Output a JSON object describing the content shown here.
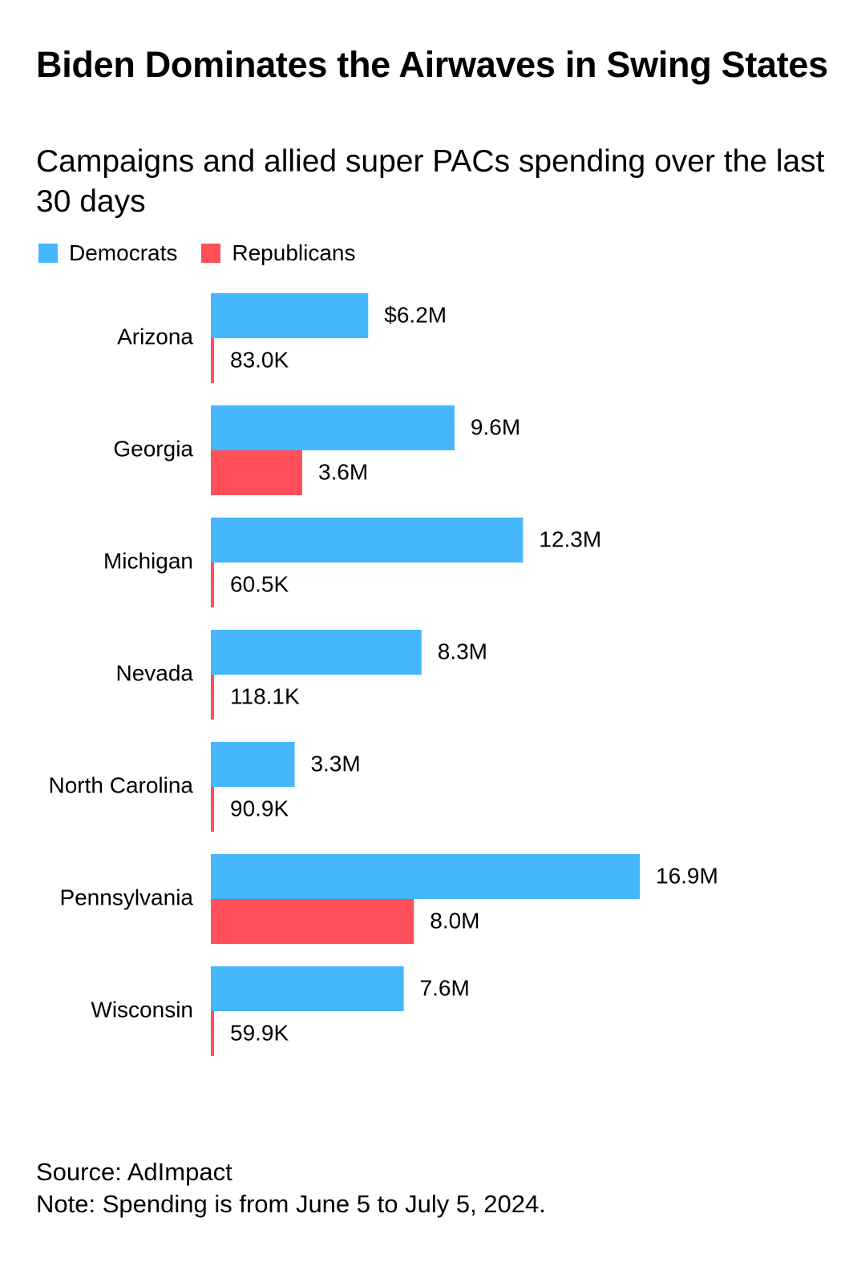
{
  "title": "Biden Dominates the Airwaves in Swing States",
  "subtitle": "Campaigns and allied super PACs spending over the last 30 days",
  "legend": [
    {
      "label": "Democrats",
      "color": "#45B6F9"
    },
    {
      "label": "Republicans",
      "color": "#FF4F5B"
    }
  ],
  "footer": {
    "source": "Source: AdImpact",
    "note": "Note: Spending is from June 5 to July 5, 2024."
  },
  "chart_data": {
    "type": "bar",
    "orientation": "horizontal",
    "title": "Biden Dominates the Airwaves in Swing States",
    "subtitle": "Campaigns and allied super PACs spending over the last 30 days",
    "xlabel": "",
    "ylabel": "",
    "unit": "USD millions",
    "xlim": [
      0,
      16.9
    ],
    "grid": false,
    "legend_position": "top-left",
    "categories": [
      "Arizona",
      "Georgia",
      "Michigan",
      "Nevada",
      "North Carolina",
      "Pennsylvania",
      "Wisconsin"
    ],
    "series": [
      {
        "name": "Democrats",
        "color": "#45B6F9",
        "values": [
          6.2,
          9.6,
          12.3,
          8.3,
          3.3,
          16.9,
          7.6
        ],
        "labels": [
          "$6.2M",
          "9.6M",
          "12.3M",
          "8.3M",
          "3.3M",
          "16.9M",
          "7.6M"
        ]
      },
      {
        "name": "Republicans",
        "color": "#FF4F5B",
        "values": [
          0.083,
          3.6,
          0.0605,
          0.1181,
          0.0909,
          8.0,
          0.0599
        ],
        "labels": [
          "83.0K",
          "3.6M",
          "60.5K",
          "118.1K",
          "90.9K",
          "8.0M",
          "59.9K"
        ]
      }
    ]
  }
}
